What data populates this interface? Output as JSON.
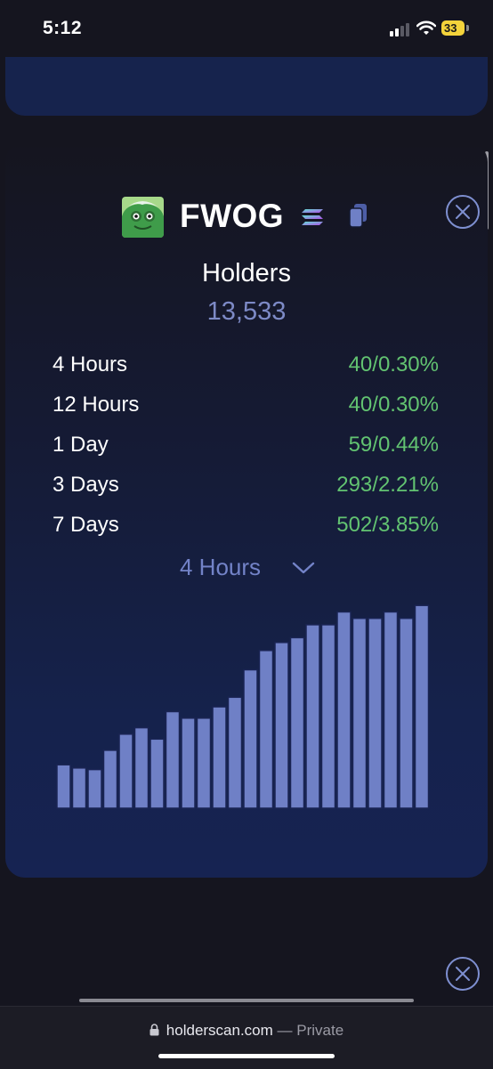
{
  "status_bar": {
    "time": "5:12",
    "battery": "33"
  },
  "token": {
    "name": "FWOG"
  },
  "holders": {
    "label": "Holders",
    "count": "13,533"
  },
  "stats": [
    {
      "label": "4 Hours",
      "value": "40/0.30%"
    },
    {
      "label": "12 Hours",
      "value": "40/0.30%"
    },
    {
      "label": "1 Day",
      "value": "59/0.44%"
    },
    {
      "label": "3 Days",
      "value": "293/2.21%"
    },
    {
      "label": "7 Days",
      "value": "502/3.85%"
    }
  ],
  "period_select": {
    "selected": "4 Hours"
  },
  "colors": {
    "positive": "#62c371",
    "accent": "#7383c8",
    "bar_fill": "#6f80c6",
    "bar_stroke": "#1a2453"
  },
  "chart_data": {
    "type": "bar",
    "values": [
      13.5,
      12.5,
      12.0,
      18.0,
      23.0,
      25.0,
      21.5,
      30.0,
      28.0,
      28.0,
      31.5,
      34.5,
      43.0,
      49.0,
      51.5,
      53.0,
      57.0,
      57.0,
      61.0,
      59.0,
      59.0,
      61.0,
      59.0,
      63.0
    ],
    "ylim": [
      0,
      65
    ],
    "grid": false
  },
  "browser": {
    "host": "holderscan.com",
    "suffix": "— Private"
  }
}
